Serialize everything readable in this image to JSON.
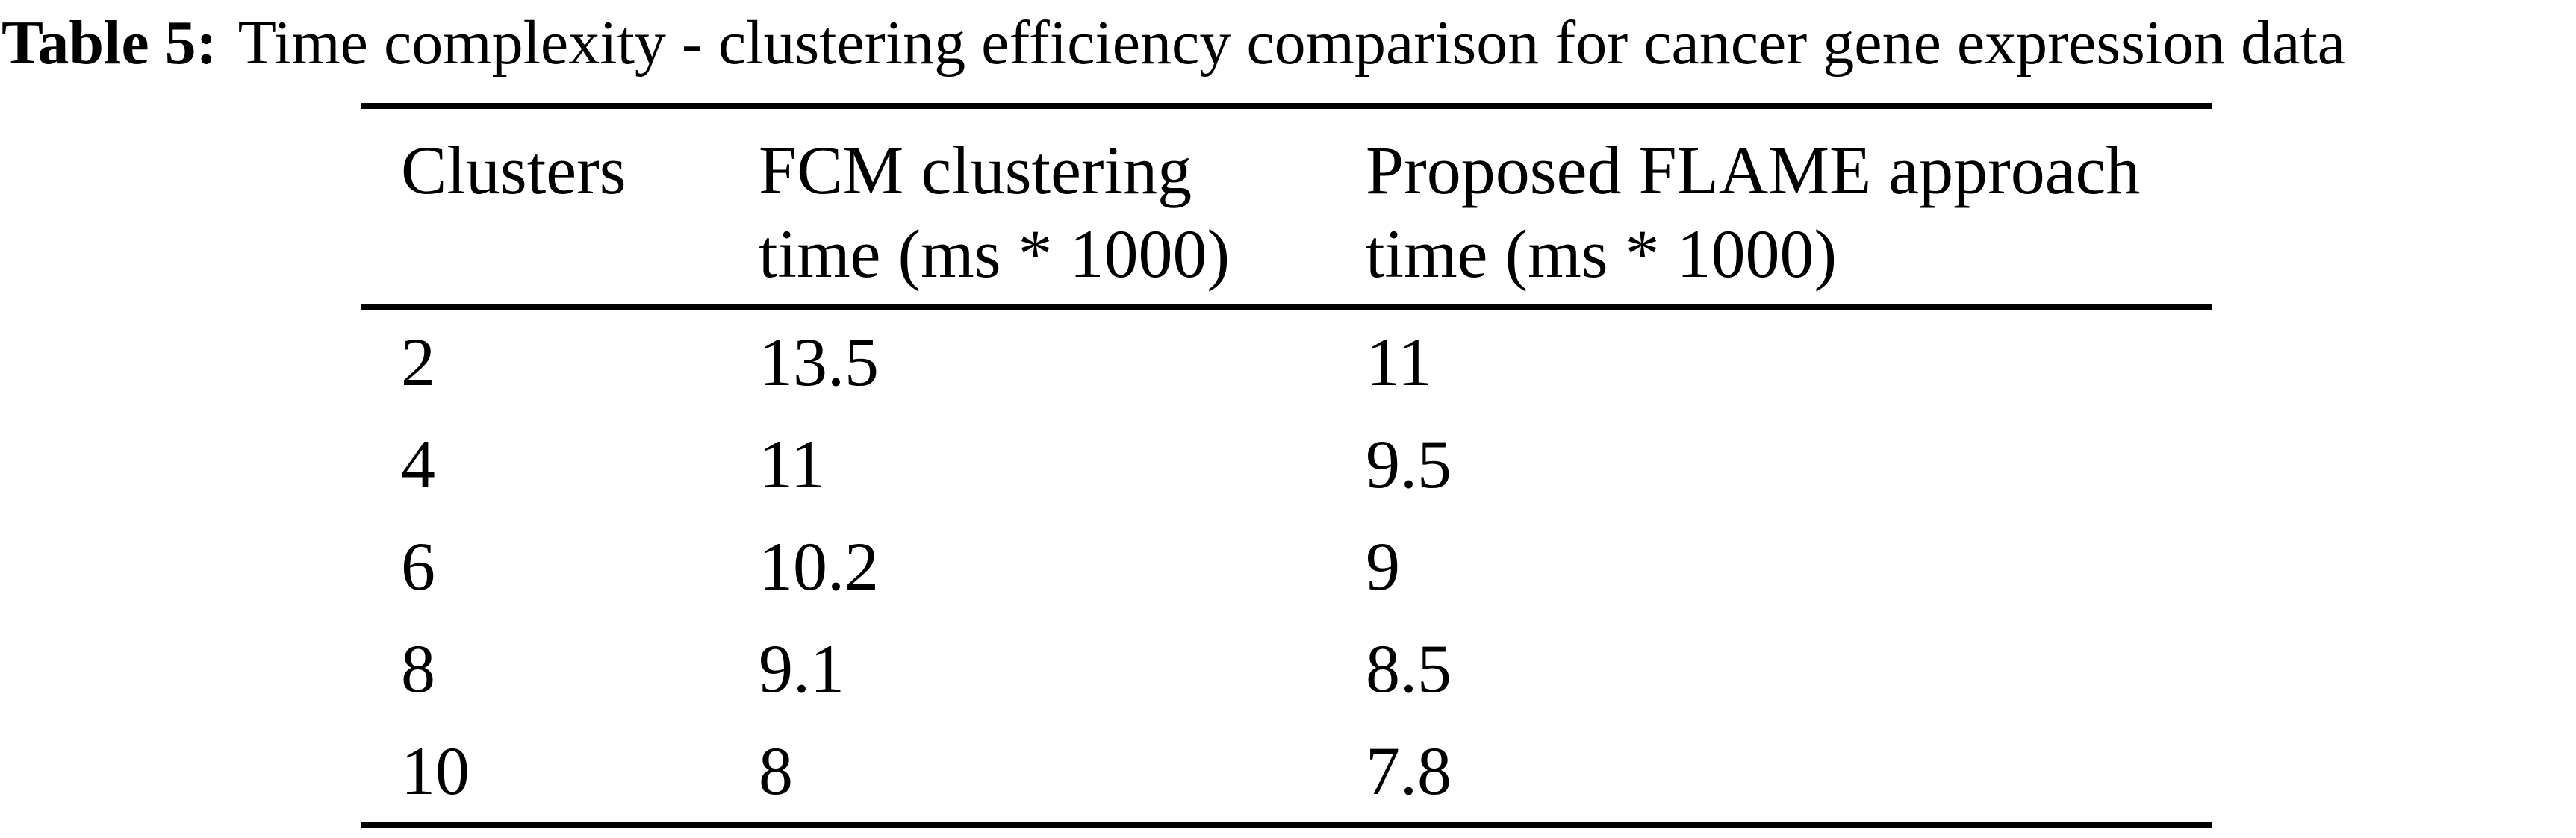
{
  "title": {
    "label": "Table 5:",
    "text": "Time complexity - clustering efficiency comparison for cancer gene expression data"
  },
  "table": {
    "columns": [
      {
        "line1": "Clusters",
        "line2": ""
      },
      {
        "line1": "FCM clustering",
        "line2": "time (ms * 1000)"
      },
      {
        "line1": "Proposed FLAME approach",
        "line2": "time (ms * 1000)"
      }
    ],
    "rows": [
      [
        "2",
        "13.5",
        "11"
      ],
      [
        "4",
        "11",
        "9.5"
      ],
      [
        "6",
        "10.2",
        "9"
      ],
      [
        "8",
        "9.1",
        "8.5"
      ],
      [
        "10",
        "8",
        "7.8"
      ]
    ]
  },
  "chart_data": {
    "type": "table",
    "title": "Table 5: Time complexity - clustering efficiency comparison for cancer gene expression data",
    "columns": [
      "Clusters",
      "FCM clustering time (ms * 1000)",
      "Proposed FLAME approach time (ms * 1000)"
    ],
    "rows": [
      [
        2,
        13.5,
        11
      ],
      [
        4,
        11,
        9.5
      ],
      [
        6,
        10.2,
        9
      ],
      [
        8,
        9.1,
        8.5
      ],
      [
        10,
        8,
        7.8
      ]
    ]
  }
}
